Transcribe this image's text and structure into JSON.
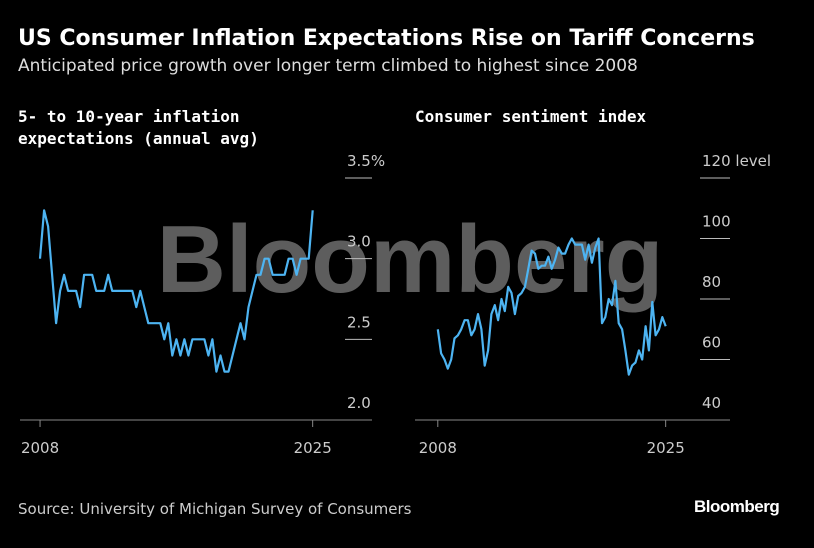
{
  "title": "US Consumer Inflation Expectations Rise on Tariff Concerns",
  "subtitle": "Anticipated price growth over longer term climbed to highest since 2008",
  "source": "Source: University of Michigan Survey of Consumers",
  "logo": "Bloomberg",
  "watermark": "Bloomberg",
  "chart_data": [
    {
      "type": "line",
      "title": "5- to 10-year inflation expectations (annual avg)",
      "color": "#4db4f2",
      "x": [
        2008,
        2008.25,
        2008.5,
        2008.75,
        2009,
        2009.25,
        2009.5,
        2009.75,
        2010,
        2010.25,
        2010.5,
        2010.75,
        2011,
        2011.25,
        2011.5,
        2011.75,
        2012,
        2012.25,
        2012.5,
        2012.75,
        2013,
        2013.25,
        2013.5,
        2013.75,
        2014,
        2014.25,
        2014.5,
        2014.75,
        2015,
        2015.25,
        2015.5,
        2015.75,
        2016,
        2016.25,
        2016.5,
        2016.75,
        2017,
        2017.25,
        2017.5,
        2017.75,
        2018,
        2018.25,
        2018.5,
        2018.75,
        2019,
        2019.25,
        2019.5,
        2019.75,
        2020,
        2020.25,
        2020.5,
        2020.75,
        2021,
        2021.25,
        2021.5,
        2021.75,
        2022,
        2022.25,
        2022.5,
        2022.75,
        2023,
        2023.25,
        2023.5,
        2023.75,
        2024,
        2024.25,
        2024.5,
        2024.75,
        2025
      ],
      "values": [
        3.0,
        3.3,
        3.2,
        2.9,
        2.6,
        2.8,
        2.9,
        2.8,
        2.8,
        2.8,
        2.7,
        2.9,
        2.9,
        2.9,
        2.8,
        2.8,
        2.8,
        2.9,
        2.8,
        2.8,
        2.8,
        2.8,
        2.8,
        2.8,
        2.7,
        2.8,
        2.7,
        2.6,
        2.6,
        2.6,
        2.6,
        2.5,
        2.6,
        2.4,
        2.5,
        2.4,
        2.5,
        2.4,
        2.5,
        2.5,
        2.5,
        2.5,
        2.4,
        2.5,
        2.3,
        2.4,
        2.3,
        2.3,
        2.4,
        2.5,
        2.6,
        2.5,
        2.7,
        2.8,
        2.9,
        2.9,
        3.0,
        3.0,
        2.9,
        2.9,
        2.9,
        2.9,
        3.0,
        3.0,
        2.9,
        3.0,
        3.0,
        3.0,
        3.3
      ],
      "xlim": [
        2006.75,
        2028.7
      ],
      "xticks": [
        2008,
        2025
      ],
      "ylim": [
        2.0,
        3.5
      ],
      "yticks": [
        {
          "value": 2,
          "label": "2.0"
        },
        2.5,
        {
          "value": 3,
          "label": "3.0"
        },
        {
          "value": 3.5,
          "label": "3.5%"
        }
      ]
    },
    {
      "type": "line",
      "title": "Consumer sentiment index",
      "color": "#4db4f2",
      "x": [
        2008,
        2008.25,
        2008.5,
        2008.75,
        2009,
        2009.25,
        2009.5,
        2009.75,
        2010,
        2010.25,
        2010.5,
        2010.75,
        2011,
        2011.25,
        2011.5,
        2011.75,
        2012,
        2012.25,
        2012.5,
        2012.75,
        2013,
        2013.25,
        2013.5,
        2013.75,
        2014,
        2014.25,
        2014.5,
        2014.75,
        2015,
        2015.25,
        2015.5,
        2015.75,
        2016,
        2016.25,
        2016.5,
        2016.75,
        2017,
        2017.25,
        2017.5,
        2017.75,
        2018,
        2018.25,
        2018.5,
        2018.75,
        2019,
        2019.25,
        2019.5,
        2019.75,
        2020,
        2020.25,
        2020.5,
        2020.75,
        2021,
        2021.25,
        2021.5,
        2021.75,
        2022,
        2022.25,
        2022.5,
        2022.75,
        2023,
        2023.25,
        2023.5,
        2023.75,
        2024,
        2024.25,
        2024.5,
        2024.75,
        2025
      ],
      "values": [
        70,
        62,
        60,
        57,
        60,
        67,
        68,
        70,
        73,
        73,
        68,
        70,
        75,
        70,
        58,
        63,
        75,
        78,
        73,
        80,
        76,
        84,
        82,
        75,
        81,
        82,
        84,
        90,
        96,
        95,
        90,
        91,
        91,
        94,
        90,
        93,
        97,
        95,
        95,
        98,
        100,
        98,
        98,
        98,
        93,
        98,
        92,
        97,
        100,
        72,
        74,
        80,
        78,
        86,
        72,
        70,
        63,
        55,
        58,
        59,
        63,
        60,
        71,
        63,
        79,
        68,
        70,
        74,
        71
      ],
      "xlim": [
        2006.3,
        2029.8
      ],
      "xticks": [
        2008,
        2025
      ],
      "ylim": [
        40,
        120
      ],
      "yticks": [
        40,
        60,
        80,
        100,
        {
          "value": 120,
          "label": "120 level"
        }
      ]
    }
  ]
}
